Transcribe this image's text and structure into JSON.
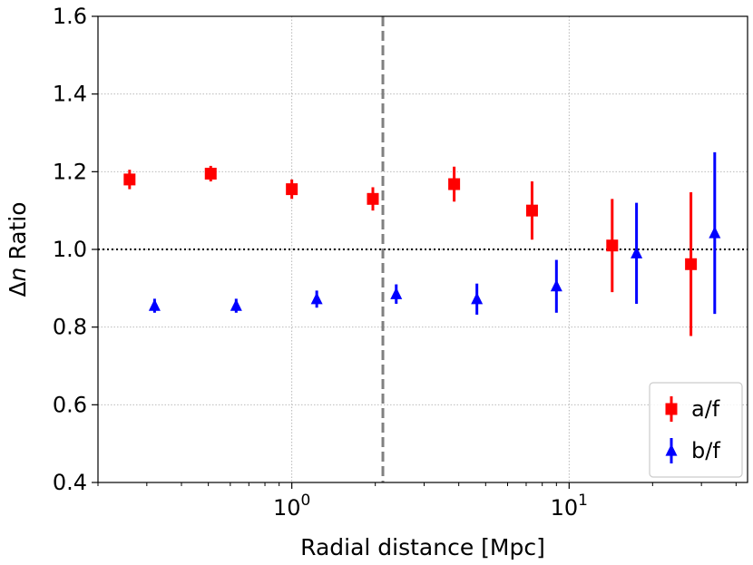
{
  "chart_data": {
    "type": "scatter",
    "title": "",
    "xlabel": "Radial distance [Mpc]",
    "ylabel": {
      "prefix": "Δ",
      "italic": "n",
      "suffix": " Ratio"
    },
    "xscale": "log",
    "xlim": [
      0.2,
      44
    ],
    "ylim": [
      0.4,
      1.6
    ],
    "xticks": [
      {
        "value": 1,
        "label_base": "10",
        "label_exp": "0"
      },
      {
        "value": 10,
        "label_base": "10",
        "label_exp": "1"
      }
    ],
    "yticks": [
      0.4,
      0.6,
      0.8,
      1.0,
      1.2,
      1.4,
      1.6
    ],
    "ytick_labels": [
      "0.4",
      "0.6",
      "0.8",
      "1.0",
      "1.2",
      "1.4",
      "1.6"
    ],
    "grid": true,
    "reference_hline": {
      "y": 1.0,
      "style": "dotted",
      "color": "#000000"
    },
    "reference_vline": {
      "x": 2.13,
      "style": "dashed",
      "color": "#808080"
    },
    "legend": {
      "location": "lower-right"
    },
    "series": [
      {
        "name": "a/f",
        "color": "#ff0000",
        "marker": "square",
        "points": [
          {
            "x": 0.26,
            "y": 1.18,
            "err": 0.025
          },
          {
            "x": 0.51,
            "y": 1.195,
            "err": 0.02
          },
          {
            "x": 1.0,
            "y": 1.155,
            "err": 0.025
          },
          {
            "x": 1.96,
            "y": 1.13,
            "err": 0.03
          },
          {
            "x": 3.85,
            "y": 1.168,
            "err": 0.045
          },
          {
            "x": 7.35,
            "y": 1.1,
            "err": 0.075
          },
          {
            "x": 14.3,
            "y": 1.01,
            "err": 0.12
          },
          {
            "x": 27.5,
            "y": 0.962,
            "err": 0.185
          }
        ]
      },
      {
        "name": "b/f",
        "color": "#0000ff",
        "marker": "triangle",
        "points": [
          {
            "x": 0.32,
            "y": 0.855,
            "err": 0.018
          },
          {
            "x": 0.63,
            "y": 0.855,
            "err": 0.018
          },
          {
            "x": 1.23,
            "y": 0.872,
            "err": 0.022
          },
          {
            "x": 2.38,
            "y": 0.885,
            "err": 0.025
          },
          {
            "x": 4.65,
            "y": 0.872,
            "err": 0.04
          },
          {
            "x": 9.0,
            "y": 0.905,
            "err": 0.068
          },
          {
            "x": 17.5,
            "y": 0.99,
            "err": 0.13
          },
          {
            "x": 33.5,
            "y": 1.042,
            "err": 0.208
          }
        ]
      }
    ]
  }
}
